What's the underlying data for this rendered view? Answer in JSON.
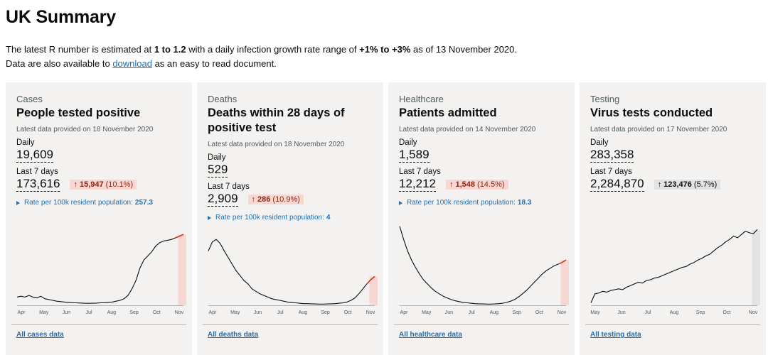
{
  "page": {
    "title": "UK Summary",
    "intro": {
      "t1": "The latest R number is estimated at ",
      "r_range": "1 to 1.2",
      "t2": " with a daily infection growth rate range of ",
      "growth_range": "+1% to +3%",
      "t3": " as of 13 November 2020.",
      "t4": "Data are also available to ",
      "download_link": "download",
      "t5": " as an easy to read document."
    }
  },
  "colors": {
    "red_highlight": "#f6d7d2",
    "red_line": "#d4351c",
    "grey_highlight": "#e3e3e3",
    "link_blue": "#1d70b8"
  },
  "cards": [
    {
      "category": "Cases",
      "heading": "People tested positive",
      "updated": "Latest data provided on 18 November 2020",
      "daily_label": "Daily",
      "daily_value": "19,609",
      "week_label": "Last 7 days",
      "week_value": "173,616",
      "change_arrow": "↑",
      "change_value": "15,947",
      "change_percent": "(10.1%)",
      "change_type": "red",
      "rate_label": "Rate per 100k resident population:",
      "rate_value": "257.3",
      "link": "All cases data",
      "months": [
        "Apr",
        "May",
        "Jun",
        "Jul",
        "Aug",
        "Sep",
        "Oct",
        "Nov"
      ],
      "series": [
        0.1,
        0.11,
        0.1,
        0.12,
        0.1,
        0.09,
        0.11,
        0.08,
        0.07,
        0.06,
        0.05,
        0.045,
        0.04,
        0.035,
        0.03,
        0.03,
        0.028,
        0.025,
        0.024,
        0.025,
        0.027,
        0.03,
        0.032,
        0.035,
        0.04,
        0.05,
        0.06,
        0.08,
        0.12,
        0.2,
        0.3,
        0.45,
        0.55,
        0.6,
        0.65,
        0.72,
        0.76,
        0.78,
        0.79,
        0.8,
        0.82,
        0.84,
        0.86
      ]
    },
    {
      "category": "Deaths",
      "heading": "Deaths within 28 days of positive test",
      "updated": "Latest data provided on 18 November 2020",
      "daily_label": "Daily",
      "daily_value": "529",
      "week_label": "Last 7 days",
      "week_value": "2,909",
      "change_arrow": "↑",
      "change_value": "286",
      "change_percent": "(10.9%)",
      "change_type": "red",
      "rate_label": "Rate per 100k resident population:",
      "rate_value": "4",
      "link": "All deaths data",
      "months": [
        "Apr",
        "May",
        "Jun",
        "Jul",
        "Aug",
        "Sep",
        "Oct",
        "Nov"
      ],
      "series": [
        0.66,
        0.77,
        0.8,
        0.75,
        0.66,
        0.58,
        0.5,
        0.42,
        0.36,
        0.3,
        0.26,
        0.2,
        0.17,
        0.14,
        0.12,
        0.1,
        0.08,
        0.07,
        0.06,
        0.05,
        0.04,
        0.035,
        0.03,
        0.025,
        0.02,
        0.02,
        0.018,
        0.016,
        0.015,
        0.015,
        0.016,
        0.018,
        0.02,
        0.025,
        0.03,
        0.04,
        0.06,
        0.09,
        0.14,
        0.2,
        0.26,
        0.31,
        0.35
      ]
    },
    {
      "category": "Healthcare",
      "heading": "Patients admitted",
      "updated": "Latest data provided on 14 November 2020",
      "daily_label": "Daily",
      "daily_value": "1,589",
      "week_label": "Last 7 days",
      "week_value": "12,212",
      "change_arrow": "↑",
      "change_value": "1,548",
      "change_percent": "(14.5%)",
      "change_type": "red",
      "rate_label": "Rate per 100k resident population:",
      "rate_value": "18.3",
      "link": "All healthcare data",
      "months": [
        "Apr",
        "May",
        "Jun",
        "Jul",
        "Aug",
        "Sep",
        "Oct",
        "Nov"
      ],
      "series": [
        0.96,
        0.8,
        0.66,
        0.55,
        0.46,
        0.38,
        0.31,
        0.26,
        0.21,
        0.17,
        0.14,
        0.11,
        0.09,
        0.07,
        0.055,
        0.045,
        0.035,
        0.03,
        0.025,
        0.02,
        0.018,
        0.016,
        0.015,
        0.015,
        0.016,
        0.02,
        0.025,
        0.035,
        0.05,
        0.07,
        0.1,
        0.14,
        0.18,
        0.23,
        0.28,
        0.33,
        0.38,
        0.42,
        0.45,
        0.48,
        0.5,
        0.52,
        0.55
      ]
    },
    {
      "category": "Testing",
      "heading": "Virus tests conducted",
      "updated": "Latest data provided on 17 November 2020",
      "daily_label": "Daily",
      "daily_value": "283,358",
      "week_label": "Last 7 days",
      "week_value": "2,284,870",
      "change_arrow": "↑",
      "change_value": "123,476",
      "change_percent": "(5.7%)",
      "change_type": "grey",
      "rate_label": "",
      "rate_value": "",
      "link": "All testing data",
      "months": [
        "May",
        "Jun",
        "Jul",
        "Aug",
        "Sep",
        "Oct",
        "Nov"
      ],
      "series": [
        0.03,
        0.14,
        0.15,
        0.17,
        0.16,
        0.18,
        0.19,
        0.2,
        0.19,
        0.22,
        0.24,
        0.26,
        0.28,
        0.27,
        0.3,
        0.31,
        0.33,
        0.34,
        0.36,
        0.38,
        0.4,
        0.42,
        0.44,
        0.46,
        0.47,
        0.5,
        0.52,
        0.55,
        0.57,
        0.6,
        0.62,
        0.66,
        0.7,
        0.73,
        0.77,
        0.8,
        0.84,
        0.82,
        0.86,
        0.9,
        0.88,
        0.87,
        0.92
      ]
    }
  ]
}
